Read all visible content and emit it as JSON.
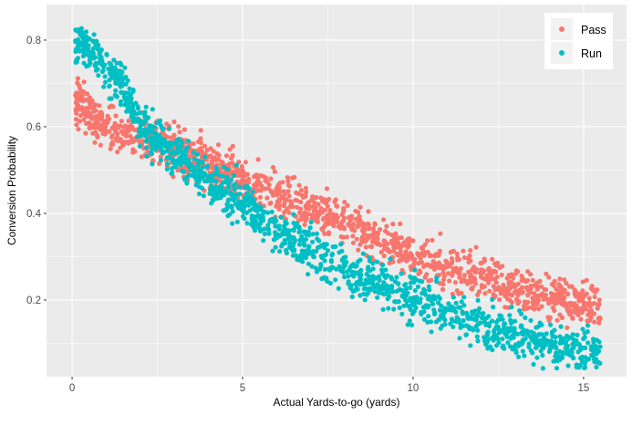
{
  "chart_data": {
    "type": "scatter",
    "xlabel": "Actual Yards-to-go (yards)",
    "ylabel": "Conversion Probability",
    "xlim": [
      -0.75,
      16.26
    ],
    "ylim": [
      0.023,
      0.882
    ],
    "x_ticks": [
      0,
      5,
      10,
      15
    ],
    "x_tick_labels": [
      "0",
      "5",
      "10",
      "15"
    ],
    "y_ticks": [
      0.2,
      0.4,
      0.6,
      0.8
    ],
    "y_tick_labels": [
      "0.2",
      "0.4",
      "0.6",
      "0.8"
    ],
    "grid": true,
    "legend": {
      "placement": "top-right",
      "entries": [
        "Pass",
        "Run"
      ]
    },
    "series": [
      {
        "name": "Pass",
        "color": "#F8766D",
        "trend_x": [
          0.1,
          0.5,
          1,
          2,
          3,
          4,
          5,
          6,
          7,
          8,
          9,
          10,
          11,
          12,
          13,
          14,
          15,
          15.5
        ],
        "trend_y": [
          0.66,
          0.63,
          0.6,
          0.57,
          0.55,
          0.51,
          0.48,
          0.44,
          0.41,
          0.38,
          0.34,
          0.3,
          0.28,
          0.26,
          0.23,
          0.21,
          0.19,
          0.18
        ]
      },
      {
        "name": "Run",
        "color": "#00BFC4",
        "trend_x": [
          0.1,
          0.5,
          1,
          1.5,
          2,
          3,
          4,
          5,
          6,
          7,
          8,
          9,
          10,
          11,
          12,
          13,
          14,
          15,
          15.5
        ],
        "trend_y": [
          0.8,
          0.78,
          0.73,
          0.69,
          0.6,
          0.54,
          0.47,
          0.43,
          0.36,
          0.31,
          0.27,
          0.24,
          0.2,
          0.17,
          0.14,
          0.12,
          0.1,
          0.085,
          0.08
        ]
      }
    ]
  }
}
